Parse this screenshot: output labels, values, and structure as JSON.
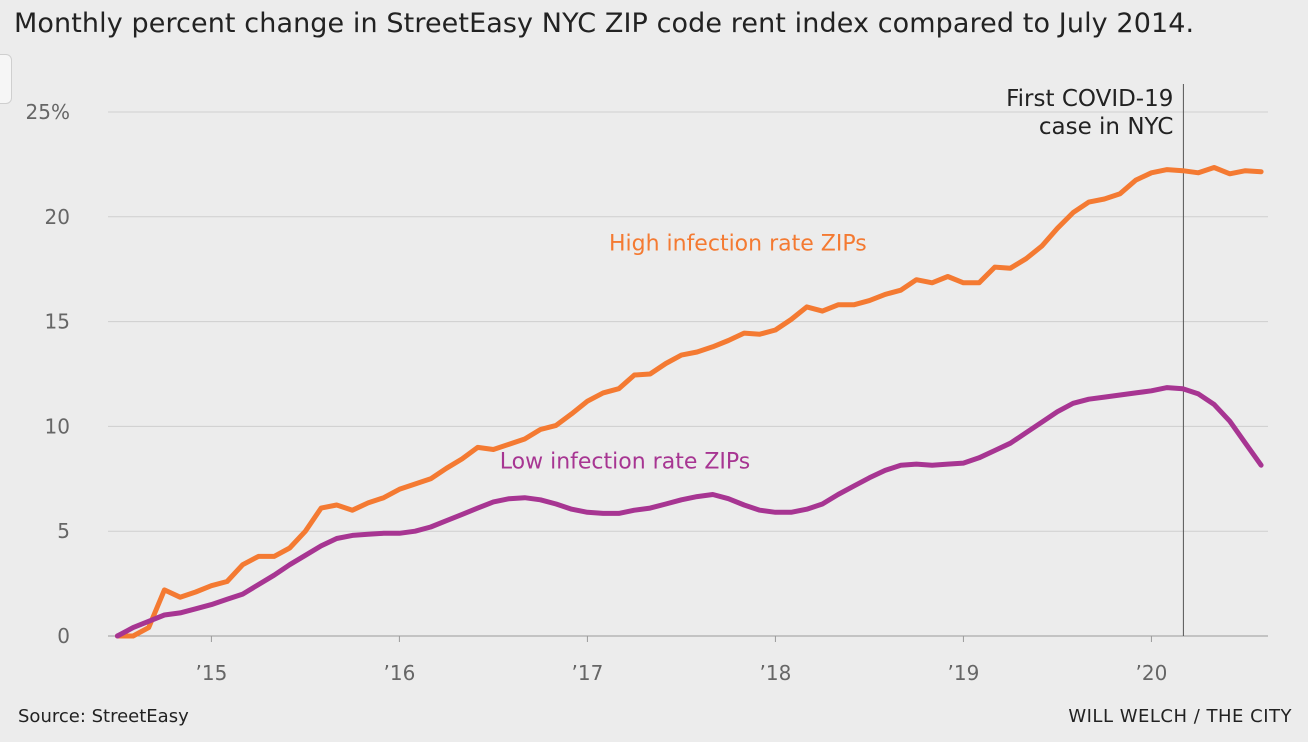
{
  "header": {
    "title": "Monthly percent change in StreetEasy NYC ZIP code rent index compared to July 2014."
  },
  "footer": {
    "source": "Source: StreetEasy",
    "credit": "WILL WELCH / THE CITY"
  },
  "chart_data": {
    "type": "line",
    "title": "Monthly percent change in StreetEasy NYC ZIP code rent index compared to July 2014.",
    "xlabel": "",
    "ylabel": "",
    "ylim": [
      0,
      25
    ],
    "xlim": [
      2014.45,
      2020.62
    ],
    "grid": true,
    "x_ticks": [
      {
        "value": 2015,
        "label": "’15"
      },
      {
        "value": 2016,
        "label": "’16"
      },
      {
        "value": 2017,
        "label": "’17"
      },
      {
        "value": 2018,
        "label": "’18"
      },
      {
        "value": 2019,
        "label": "’19"
      },
      {
        "value": 2020,
        "label": "’20"
      }
    ],
    "y_ticks": [
      {
        "value": 0,
        "label": "0"
      },
      {
        "value": 5,
        "label": "5"
      },
      {
        "value": 10,
        "label": "10"
      },
      {
        "value": 15,
        "label": "15"
      },
      {
        "value": 20,
        "label": "20"
      },
      {
        "value": 25,
        "label": "25%"
      }
    ],
    "annotation": {
      "x": 2020.17,
      "line1": "First COVID-19",
      "line2": "case in NYC"
    },
    "series": [
      {
        "name": "High infection rate ZIPs",
        "color": "#f47a32",
        "label_at": {
          "x": 2017.8,
          "y": 18.4
        },
        "x_start": 2014.5,
        "values": [
          0,
          0,
          0.4,
          2.2,
          1.85,
          2.1,
          2.4,
          2.6,
          3.4,
          3.8,
          3.8,
          4.2,
          5.0,
          6.1,
          6.25,
          6.0,
          6.35,
          6.6,
          7.0,
          7.25,
          7.5,
          8.0,
          8.45,
          9.0,
          8.9,
          9.15,
          9.4,
          9.85,
          10.05,
          10.6,
          11.2,
          11.6,
          11.8,
          12.45,
          12.5,
          13.0,
          13.4,
          13.55,
          13.8,
          14.1,
          14.45,
          14.4,
          14.6,
          15.1,
          15.7,
          15.5,
          15.8,
          15.8,
          16.0,
          16.3,
          16.5,
          17.0,
          16.85,
          17.15,
          16.85,
          16.85,
          17.6,
          17.55,
          18.0,
          18.6,
          19.45,
          20.2,
          20.7,
          20.85,
          21.1,
          21.75,
          22.1,
          22.25,
          22.2,
          22.1,
          22.35,
          22.05,
          22.2,
          22.15
        ]
      },
      {
        "name": "Low infection rate ZIPs",
        "color": "#a73592",
        "label_at": {
          "x": 2017.2,
          "y": 8.0
        },
        "x_start": 2014.5,
        "values": [
          0,
          0.4,
          0.7,
          1.0,
          1.1,
          1.3,
          1.5,
          1.75,
          2.0,
          2.45,
          2.9,
          3.4,
          3.85,
          4.3,
          4.65,
          4.8,
          4.85,
          4.9,
          4.9,
          5.0,
          5.2,
          5.5,
          5.8,
          6.1,
          6.4,
          6.55,
          6.6,
          6.5,
          6.3,
          6.05,
          5.9,
          5.85,
          5.85,
          6.0,
          6.1,
          6.3,
          6.5,
          6.65,
          6.75,
          6.55,
          6.25,
          6.0,
          5.9,
          5.9,
          6.05,
          6.3,
          6.75,
          7.15,
          7.55,
          7.9,
          8.15,
          8.2,
          8.15,
          8.2,
          8.25,
          8.5,
          8.85,
          9.2,
          9.7,
          10.2,
          10.7,
          11.1,
          11.3,
          11.4,
          11.5,
          11.6,
          11.7,
          11.85,
          11.8,
          11.55,
          11.05,
          10.25,
          9.2,
          8.15
        ]
      }
    ]
  }
}
